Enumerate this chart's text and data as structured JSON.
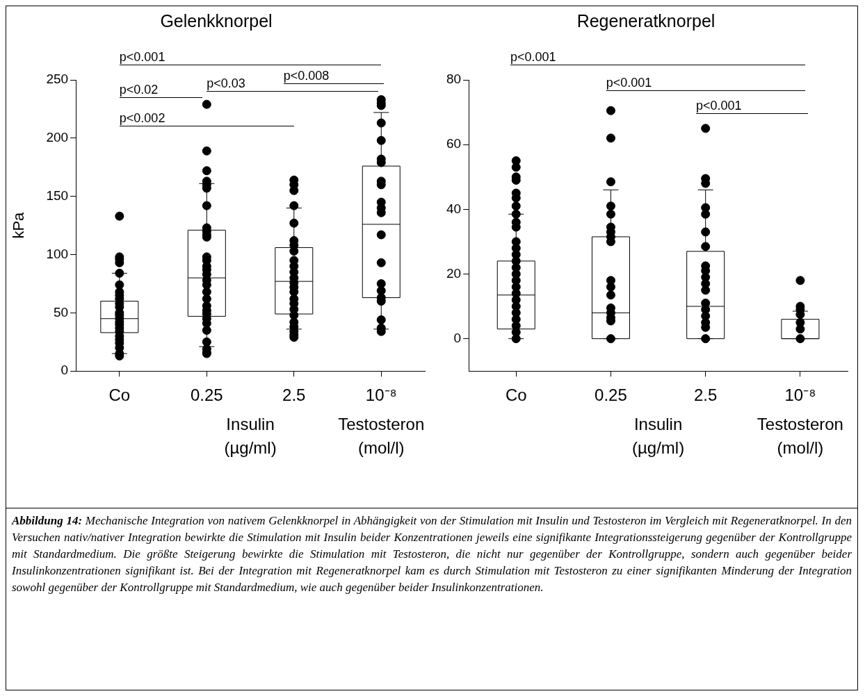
{
  "chart_data": [
    {
      "type": "box",
      "title": "Gelenkknorpel",
      "ylabel": "kPa",
      "categories": [
        "Co",
        "0.25",
        "2.5",
        "10⁻⁸"
      ],
      "ylim": [
        0,
        250
      ],
      "yticks": [
        0,
        50,
        100,
        150,
        200,
        250
      ],
      "grid": false,
      "legend": false,
      "marker": "circle",
      "boxes": [
        {
          "low": 15,
          "q1": 33,
          "median": 45,
          "q3": 60,
          "high": 84
        },
        {
          "low": 21,
          "q1": 47,
          "median": 80,
          "q3": 121,
          "high": 161
        },
        {
          "low": 36,
          "q1": 49,
          "median": 77,
          "q3": 106,
          "high": 140
        },
        {
          "low": 36,
          "q1": 63,
          "median": 126,
          "q3": 176,
          "high": 222
        }
      ],
      "series": [
        {
          "type": "scatter",
          "color": "#000000",
          "x": [
            "Co",
            "Co",
            "Co",
            "Co",
            "Co",
            "Co",
            "Co",
            "Co",
            "Co",
            "Co",
            "Co",
            "Co",
            "Co",
            "Co",
            "Co",
            "Co",
            "Co",
            "Co",
            "Co",
            "Co",
            "Co",
            "Co",
            "Co",
            "Co",
            "0.25",
            "0.25",
            "0.25",
            "0.25",
            "0.25",
            "0.25",
            "0.25",
            "0.25",
            "0.25",
            "0.25",
            "0.25",
            "0.25",
            "0.25",
            "0.25",
            "0.25",
            "0.25",
            "0.25",
            "0.25",
            "0.25",
            "0.25",
            "0.25",
            "0.25",
            "0.25",
            "0.25",
            "0.25",
            "0.25",
            "0.25",
            "0.25",
            "0.25",
            "0.25",
            "2.5",
            "2.5",
            "2.5",
            "2.5",
            "2.5",
            "2.5",
            "2.5",
            "2.5",
            "2.5",
            "2.5",
            "2.5",
            "2.5",
            "2.5",
            "2.5",
            "2.5",
            "2.5",
            "2.5",
            "2.5",
            "2.5",
            "2.5",
            "2.5",
            "2.5",
            "2.5",
            "2.5",
            "10⁻⁸",
            "10⁻⁸",
            "10⁻⁸",
            "10⁻⁸",
            "10⁻⁸",
            "10⁻⁸",
            "10⁻⁸",
            "10⁻⁸",
            "10⁻⁸",
            "10⁻⁸",
            "10⁻⁸",
            "10⁻⁸",
            "10⁻⁸",
            "10⁻⁸",
            "10⁻⁸",
            "10⁻⁸",
            "10⁻⁸",
            "10⁻⁸",
            "10⁻⁸",
            "10⁻⁸",
            "10⁻⁸"
          ],
          "values": [
            133,
            98,
            96,
            93,
            84,
            74,
            68,
            65,
            62,
            58,
            55,
            50,
            48,
            45,
            42,
            40,
            37,
            34,
            30,
            27,
            24,
            20,
            15,
            13,
            229,
            189,
            172,
            163,
            160,
            157,
            142,
            123,
            120,
            117,
            115,
            98,
            95,
            90,
            87,
            83,
            78,
            74,
            68,
            62,
            56,
            52,
            49,
            45,
            41,
            35,
            25,
            19,
            16,
            15,
            164,
            160,
            155,
            142,
            127,
            112,
            108,
            103,
            95,
            90,
            85,
            80,
            76,
            72,
            68,
            62,
            58,
            53,
            48,
            42,
            38,
            34,
            31,
            29,
            233,
            230,
            228,
            213,
            198,
            182,
            179,
            163,
            160,
            145,
            140,
            136,
            117,
            93,
            75,
            69,
            63,
            60,
            44,
            37,
            34
          ]
        }
      ],
      "annotations": [
        "p<0.001",
        "p<0.008",
        "p<0.03",
        "p<0.02",
        "p<0.002",
        "Insulin\n(µg/ml)",
        "Testosteron\n(mol/l)"
      ]
    },
    {
      "type": "box",
      "title": "Regeneratknorpel",
      "categories": [
        "Co",
        "0.25",
        "2.5",
        "10⁻⁸"
      ],
      "ylim": [
        -10,
        80
      ],
      "yticks": [
        0,
        20,
        40,
        60,
        80
      ],
      "grid": false,
      "legend": false,
      "marker": "circle",
      "boxes": [
        {
          "low": 0,
          "q1": 3,
          "median": 13.5,
          "q3": 24,
          "high": 38.5
        },
        {
          "low": 0,
          "q1": 0,
          "median": 8,
          "q3": 31.5,
          "high": 46
        },
        {
          "low": 0,
          "q1": 0,
          "median": 10,
          "q3": 27,
          "high": 46
        },
        {
          "low": 0,
          "q1": 0,
          "median": 0,
          "q3": 6,
          "high": 8.5
        }
      ],
      "series": [
        {
          "type": "scatter",
          "color": "#000000",
          "x": [
            "Co",
            "Co",
            "Co",
            "Co",
            "Co",
            "Co",
            "Co",
            "Co",
            "Co",
            "Co",
            "Co",
            "Co",
            "Co",
            "Co",
            "Co",
            "Co",
            "Co",
            "Co",
            "Co",
            "Co",
            "Co",
            "Co",
            "Co",
            "Co",
            "Co",
            "Co",
            "0.25",
            "0.25",
            "0.25",
            "0.25",
            "0.25",
            "0.25",
            "0.25",
            "0.25",
            "0.25",
            "0.25",
            "0.25",
            "0.25",
            "0.25",
            "0.25",
            "0.25",
            "0.25",
            "0.25",
            "2.5",
            "2.5",
            "2.5",
            "2.5",
            "2.5",
            "2.5",
            "2.5",
            "2.5",
            "2.5",
            "2.5",
            "2.5",
            "2.5",
            "2.5",
            "2.5",
            "2.5",
            "2.5",
            "2.5",
            "2.5",
            "10⁻⁸",
            "10⁻⁸",
            "10⁻⁸",
            "10⁻⁸",
            "10⁻⁸",
            "10⁻⁸",
            "10⁻⁸"
          ],
          "values": [
            55,
            53,
            50,
            49,
            45,
            43.5,
            41,
            38.5,
            36,
            34.5,
            30,
            28,
            26,
            24,
            22,
            20,
            18,
            16,
            14,
            12,
            10,
            8,
            6,
            4,
            2,
            0,
            70.5,
            62,
            48.5,
            41,
            38.5,
            34.5,
            33,
            31.5,
            30,
            18,
            16,
            13.5,
            9.5,
            8,
            6.5,
            5.5,
            0,
            65,
            49.5,
            48,
            40.5,
            38.5,
            33,
            28.5,
            22.5,
            21,
            19,
            17,
            15,
            11,
            9,
            7,
            5,
            3.5,
            0,
            18,
            10,
            9,
            7.5,
            5,
            3,
            0
          ]
        }
      ],
      "annotations": [
        "p<0.001",
        "p<0.001",
        "p<0.001",
        "Insulin\n(µg/ml)",
        "Testosteron\n(mol/l)"
      ]
    },
    {
      "type": "other",
      "title": "Abbildung 14:",
      "annotations": [
        "Mechanische Integration von nativem Gelenkknorpel in Abhängigkeit von der Stimulation mit Insulin und Testosteron im Vergleich mit Regeneratknorpel. In den Versuchen nativ/nativer Integration bewirkte die Stimulation mit Insulin beider Konzentrationen jeweils eine signifikante Integrationssteigerung gegenüber der Kontrollgruppe mit Standardmedium. Die größte Steigerung bewirkte die Stimulation mit Testosteron, die nicht nur gegenüber der Kontrollgruppe, sondern auch gegenüber beider Insulinkonzentrationen signifikant ist. Bei der Integration mit Regeneratknorpel kam es durch Stimulation mit Testosteron zu einer signifikanten Minderung der Integration sowohl gegenüber der Kontrollgruppe mit Standardmedium, wie auch gegenüber beider Insulinkonzentrationen."
      ]
    }
  ]
}
